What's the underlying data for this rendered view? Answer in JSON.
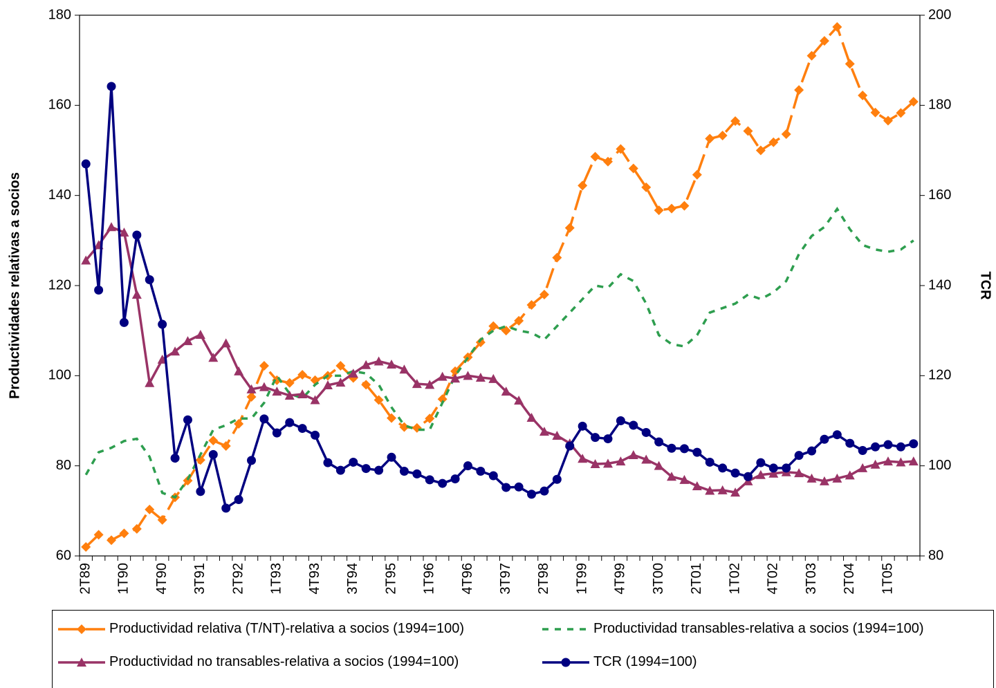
{
  "chart_data": {
    "type": "line",
    "y_label": "Productividades relativas a socios",
    "y2_label": "TCR",
    "categories": [
      "2T89",
      null,
      null,
      "1T90",
      null,
      null,
      "4T90",
      null,
      null,
      "3T91",
      null,
      null,
      "2T92",
      null,
      null,
      "1T93",
      null,
      null,
      "4T93",
      null,
      null,
      "3T94",
      null,
      null,
      "2T95",
      null,
      null,
      "1T96",
      null,
      null,
      "4T96",
      null,
      null,
      "3T97",
      null,
      null,
      "2T98",
      null,
      null,
      "1T99",
      null,
      null,
      "4T99",
      null,
      null,
      "3T00",
      null,
      null,
      "2T01",
      null,
      null,
      "1T02",
      null,
      null,
      "4T02",
      null,
      null,
      "3T03",
      null,
      null,
      "2T04",
      null,
      null,
      "1T05",
      null,
      null
    ],
    "ylim": [
      60,
      180
    ],
    "yticks": [
      60,
      80,
      100,
      120,
      140,
      160,
      180
    ],
    "y2lim": [
      80,
      200
    ],
    "y2ticks": [
      80,
      100,
      120,
      140,
      160,
      180,
      200
    ],
    "grid": false,
    "series": [
      {
        "name": "Productividad relativa (T/NT)-relativa a socios (1994=100)",
        "color": "#ff7f0e",
        "marker": "diamond",
        "line_style": "longdash",
        "values": [
          62,
          64.7,
          63.5,
          65,
          66,
          70.3,
          68,
          73,
          76.7,
          81.3,
          85.6,
          84.4,
          89.3,
          95.3,
          102.2,
          99,
          98.4,
          100.2,
          99,
          100,
          102.2,
          99.5,
          98,
          94.6,
          90.6,
          88.6,
          88.4,
          90.5,
          94.8,
          101,
          104.1,
          107.4,
          111,
          110,
          112.2,
          115.7,
          118,
          126.2,
          132.8,
          142.2,
          148.6,
          147.5,
          150.3,
          146,
          141.8,
          136.7,
          137.1,
          137.7,
          144.6,
          152.6,
          153.3,
          156.5,
          154.3,
          150,
          151.8,
          153.6,
          163.4,
          171,
          174.3,
          177.4,
          169.2,
          162.2,
          158.4,
          156.6,
          158.3,
          160.8
        ]
      },
      {
        "name": "Productividad transables-relativa a socios (1994=100)",
        "color": "#2e9e4f",
        "marker": "none",
        "line_style": "dash",
        "values": [
          78,
          83,
          84,
          85.5,
          86,
          82,
          74,
          73,
          77,
          82.5,
          88,
          89,
          90.5,
          90.5,
          94,
          100,
          96,
          95,
          98,
          100,
          100,
          101,
          100.5,
          98,
          93,
          89,
          88,
          88,
          94,
          100,
          104,
          108,
          110,
          111,
          110,
          109.5,
          108,
          111,
          114,
          117,
          120,
          119.5,
          122.5,
          121,
          116,
          109,
          107,
          106.5,
          109,
          114,
          115,
          116,
          118,
          117,
          118.5,
          121,
          127,
          131,
          133,
          137,
          132.5,
          129,
          128,
          127.5,
          128,
          130
        ]
      },
      {
        "name": "Productividad no transables-relativa a socios (1994=100)",
        "color": "#993366",
        "marker": "triangle",
        "line_style": "solid",
        "values": [
          125.6,
          129,
          133,
          131.8,
          118,
          98.4,
          103.6,
          105.4,
          107.7,
          109.1,
          104,
          107.2,
          101,
          97,
          97.5,
          96.5,
          95.6,
          95.9,
          94.6,
          97.9,
          98.5,
          100.5,
          102.4,
          103.2,
          102.5,
          101.4,
          98.2,
          98,
          99.8,
          99.4,
          100,
          99.6,
          99.3,
          96.5,
          94.5,
          90.7,
          87.6,
          86.7,
          85,
          81.6,
          80.4,
          80.5,
          81,
          82.4,
          81.4,
          80,
          77.6,
          76.9,
          75.5,
          74.5,
          74.6,
          74.1,
          76.6,
          78,
          78.3,
          78.6,
          78.4,
          77.2,
          76.6,
          77.2,
          77.9,
          79.5,
          80.3,
          81,
          80.8,
          81
        ]
      },
      {
        "name": "TCR (1994=100)",
        "color": "#000080",
        "marker": "circle",
        "line_style": "solid",
        "axis": "y2",
        "values": [
          167,
          139,
          184.2,
          131.8,
          151.2,
          141.3,
          131.4,
          101.7,
          110.2,
          94.3,
          102.5,
          90.6,
          92.5,
          101.2,
          110.4,
          107.3,
          109.6,
          108.3,
          106.8,
          100.7,
          99,
          100.8,
          99.4,
          99,
          101.9,
          98.8,
          98.2,
          96.9,
          96.1,
          97.1,
          100,
          98.8,
          97.8,
          95.2,
          95.3,
          93.7,
          94.4,
          97,
          104.4,
          108.8,
          106.3,
          106,
          110,
          109,
          107.4,
          105.3,
          103.9,
          103.8,
          103,
          100.8,
          99.5,
          98.4,
          97.6,
          100.7,
          99.5,
          99.5,
          102.3,
          103.3,
          105.9,
          106.9,
          105,
          103.4,
          104.2,
          104.7,
          104.2,
          104.9
        ]
      }
    ]
  }
}
